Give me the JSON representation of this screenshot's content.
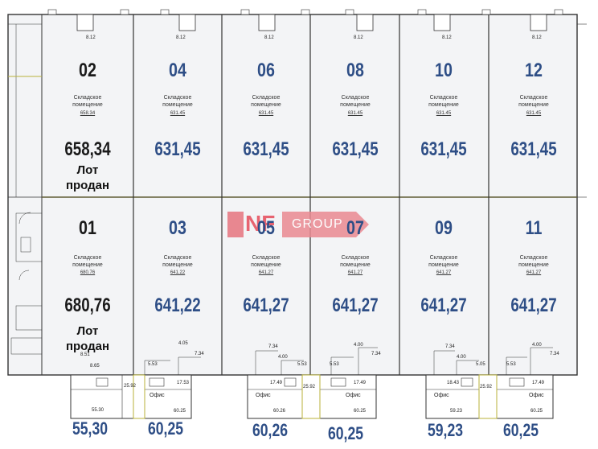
{
  "units_top": [
    {
      "id": "u02",
      "num": "02",
      "label": "Складское\nпомещение",
      "area_small": "658.34",
      "area_big": "658,34",
      "sold": "Лот\nпродан",
      "dim": "8.12",
      "color": "#1a1a1a"
    },
    {
      "id": "u04",
      "num": "04",
      "label": "Складское\nпомещение",
      "area_small": "631.45",
      "area_big": "631,45",
      "dim": "8.12",
      "color": "#2e4e86"
    },
    {
      "id": "u06",
      "num": "06",
      "label": "Складское\nпомещение",
      "area_small": "631.45",
      "area_big": "631,45",
      "dim": "8.12",
      "color": "#2e4e86"
    },
    {
      "id": "u08",
      "num": "08",
      "label": "Складское\nпомещение",
      "area_small": "631.45",
      "area_big": "631,45",
      "dim": "8.12",
      "color": "#2e4e86"
    },
    {
      "id": "u10",
      "num": "10",
      "label": "Складское\nпомещение",
      "area_small": "631.45",
      "area_big": "631,45",
      "dim": "8.12",
      "color": "#2e4e86"
    },
    {
      "id": "u12",
      "num": "12",
      "label": "Складское\nпомещение",
      "area_small": "631.45",
      "area_big": "631,45",
      "dim": "8.12",
      "color": "#2e4e86"
    }
  ],
  "units_bottom": [
    {
      "id": "u01",
      "num": "01",
      "label": "Складское\nпомещение",
      "area_small": "680.76",
      "area_big": "680,76",
      "sold": "Лот\nпродан",
      "color": "#1a1a1a"
    },
    {
      "id": "u03",
      "num": "03",
      "label": "Складское\nпомещение",
      "area_small": "641.22",
      "area_big": "641,22",
      "color": "#2e4e86"
    },
    {
      "id": "u05",
      "num": "05",
      "label": "Складское\nпомещение",
      "area_small": "641.27",
      "area_big": "641,27",
      "color": "#2e4e86"
    },
    {
      "id": "u07",
      "num": "07",
      "label": "Складское\nпомещение",
      "area_small": "641.27",
      "area_big": "641,27",
      "color": "#2e4e86"
    },
    {
      "id": "u09",
      "num": "09",
      "label": "Складское\nпомещение",
      "area_small": "641.27",
      "area_big": "641,27",
      "color": "#2e4e86"
    },
    {
      "id": "u11",
      "num": "11",
      "label": "Складское\nпомещение",
      "area_small": "641.27",
      "area_big": "641,27",
      "color": "#2e4e86"
    }
  ],
  "logo": {
    "left": "NF",
    "right": "GROUP"
  },
  "offices": {
    "office_label": "Офис",
    "big_areas": [
      "55,30",
      "60,25",
      "60,26",
      "60,25",
      "59,23",
      "60,25"
    ],
    "dims": {
      "a": "8.51",
      "b": "8.65",
      "c": "25.92",
      "d": "55.30",
      "e": "5.53",
      "f": "4.05",
      "g": "7.34",
      "h": "17.53",
      "i": "60.25",
      "j": "7.34",
      "k": "4.00",
      "l": "5.53",
      "m": "17.49",
      "n": "25.92",
      "o": "60.26",
      "p": "5.53",
      "q": "4.00",
      "r": "7.34",
      "s": "17.49",
      "t": "60.25",
      "u": "7.34",
      "v": "4.00",
      "w": "5.05",
      "x": "18.43",
      "y": "25.92",
      "z": "59.23",
      "aa": "5.53",
      "ab": "4.00",
      "ac": "7.34",
      "ad": "17.49",
      "ae": "60.25"
    }
  },
  "colors": {
    "wall": "#333333",
    "accent_line": "#b8b23a",
    "floor": "#f3f4f6",
    "blue": "#2e4e86",
    "logo": "#e54a59"
  }
}
